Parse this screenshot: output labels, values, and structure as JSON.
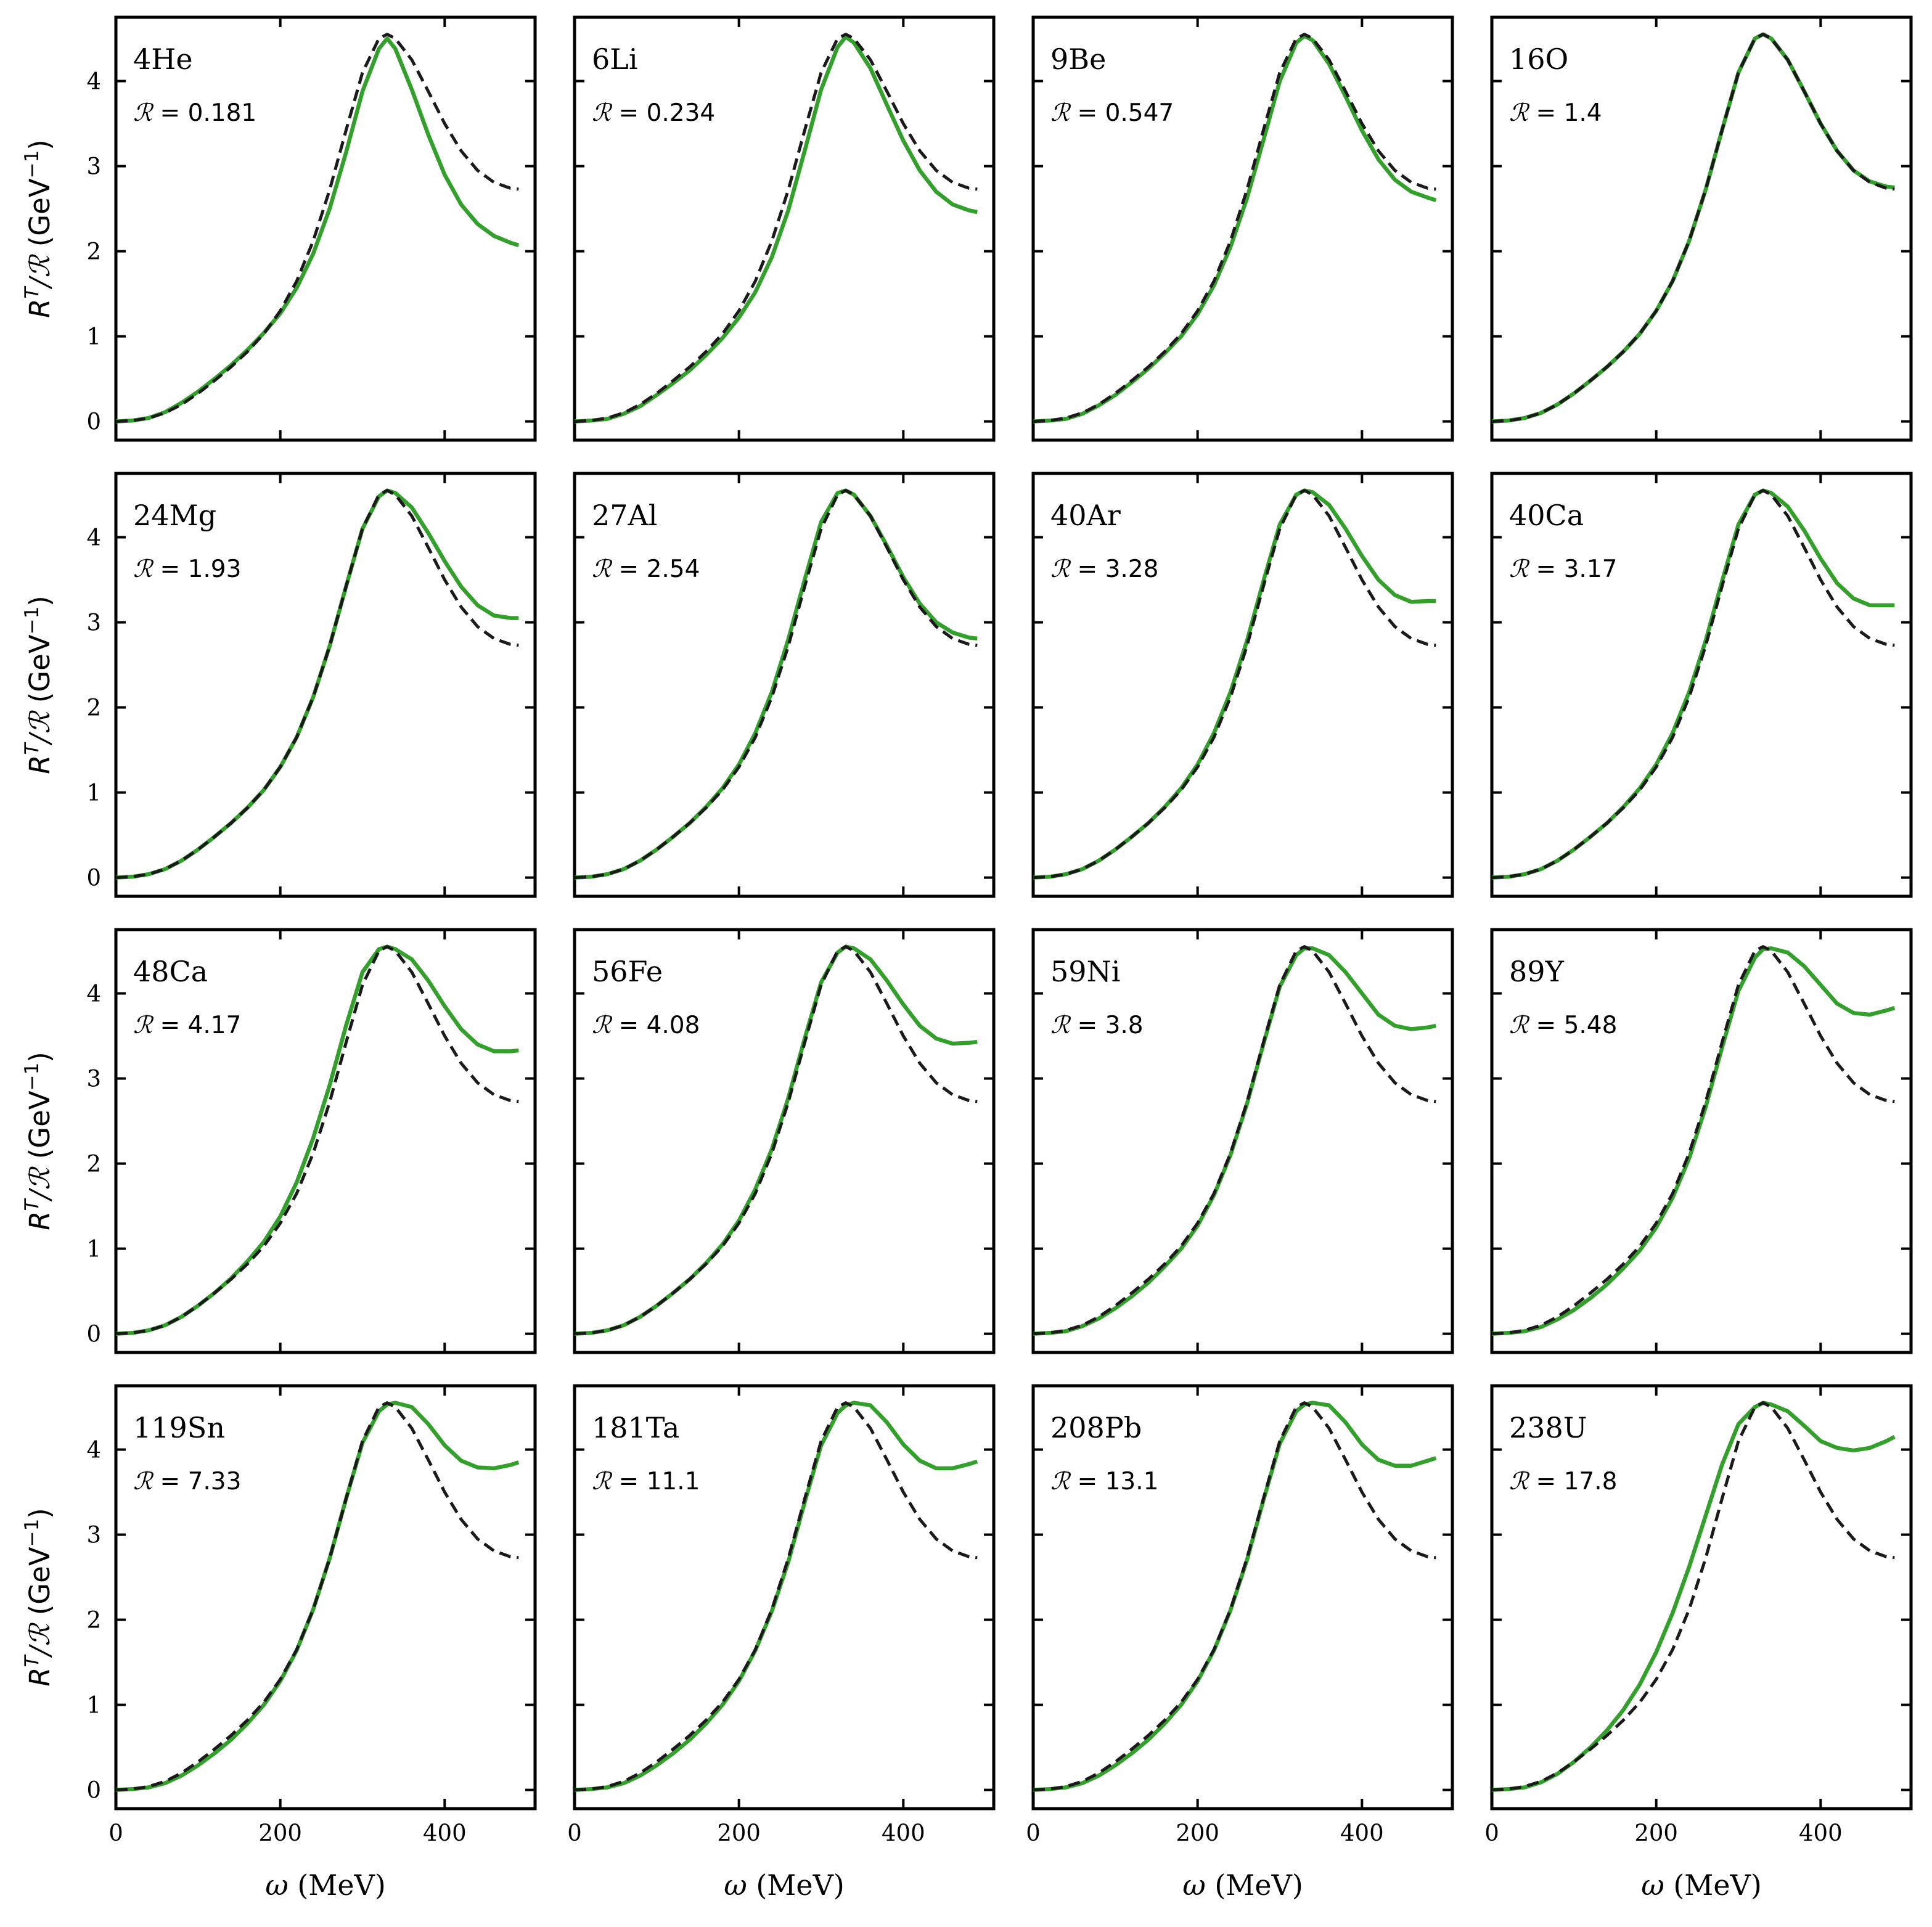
{
  "chart_data": {
    "type": "line",
    "layout": "4x4 small multiples, shared x and y axes",
    "xlabel": "ω (MeV)",
    "ylabel": "R^T/ℛ (GeV⁻¹)",
    "xlim": [
      0,
      510
    ],
    "ylim": [
      -0.22,
      4.75
    ],
    "xticks": [
      0,
      200,
      400
    ],
    "yticks": [
      0,
      1,
      2,
      3,
      4
    ],
    "reference_curve": {
      "name": "reference (dashed)",
      "color": "#1a1a1a",
      "style": "dashed",
      "x": [
        0,
        20,
        40,
        60,
        80,
        100,
        120,
        140,
        160,
        180,
        200,
        220,
        240,
        260,
        280,
        300,
        320,
        330,
        340,
        360,
        380,
        400,
        420,
        440,
        460,
        480,
        490
      ],
      "values": [
        0,
        0.01,
        0.04,
        0.1,
        0.2,
        0.33,
        0.48,
        0.64,
        0.82,
        1.03,
        1.3,
        1.65,
        2.12,
        2.72,
        3.42,
        4.1,
        4.5,
        4.55,
        4.5,
        4.25,
        3.88,
        3.5,
        3.18,
        2.95,
        2.81,
        2.74,
        2.73
      ]
    },
    "panel_series_color": "#33a02c",
    "panels": [
      {
        "nucleus": "4He",
        "r_label": "ℛ = 0.181",
        "values": [
          0,
          0.01,
          0.04,
          0.11,
          0.22,
          0.35,
          0.5,
          0.66,
          0.84,
          1.04,
          1.27,
          1.57,
          1.97,
          2.5,
          3.16,
          3.88,
          4.38,
          4.5,
          4.38,
          3.9,
          3.37,
          2.9,
          2.55,
          2.32,
          2.18,
          2.1,
          2.07
        ]
      },
      {
        "nucleus": "6Li",
        "r_label": "ℛ = 0.234",
        "values": [
          0,
          0.01,
          0.03,
          0.09,
          0.18,
          0.31,
          0.45,
          0.6,
          0.78,
          0.98,
          1.22,
          1.52,
          1.93,
          2.48,
          3.18,
          3.9,
          4.4,
          4.52,
          4.45,
          4.15,
          3.72,
          3.3,
          2.95,
          2.7,
          2.55,
          2.48,
          2.46
        ]
      },
      {
        "nucleus": "9Be",
        "r_label": "ℛ = 0.547",
        "values": [
          0,
          0.01,
          0.03,
          0.09,
          0.19,
          0.31,
          0.46,
          0.62,
          0.8,
          1.0,
          1.26,
          1.6,
          2.05,
          2.62,
          3.3,
          4.0,
          4.45,
          4.53,
          4.48,
          4.2,
          3.82,
          3.42,
          3.08,
          2.84,
          2.7,
          2.63,
          2.6
        ]
      },
      {
        "nucleus": "16O",
        "r_label": "ℛ = 1.4",
        "values": [
          0,
          0.01,
          0.04,
          0.1,
          0.2,
          0.33,
          0.48,
          0.64,
          0.82,
          1.03,
          1.3,
          1.65,
          2.12,
          2.72,
          3.42,
          4.1,
          4.5,
          4.55,
          4.5,
          4.25,
          3.88,
          3.5,
          3.18,
          2.95,
          2.82,
          2.76,
          2.75
        ]
      },
      {
        "nucleus": "24Mg",
        "r_label": "ℛ = 1.93",
        "values": [
          0,
          0.01,
          0.04,
          0.1,
          0.2,
          0.33,
          0.48,
          0.64,
          0.82,
          1.03,
          1.3,
          1.65,
          2.12,
          2.72,
          3.42,
          4.1,
          4.48,
          4.55,
          4.52,
          4.35,
          4.05,
          3.72,
          3.42,
          3.2,
          3.08,
          3.05,
          3.05
        ]
      },
      {
        "nucleus": "27Al",
        "r_label": "ℛ = 2.54",
        "values": [
          0,
          0.01,
          0.04,
          0.1,
          0.2,
          0.33,
          0.48,
          0.64,
          0.83,
          1.05,
          1.33,
          1.7,
          2.18,
          2.8,
          3.5,
          4.18,
          4.52,
          4.55,
          4.5,
          4.25,
          3.9,
          3.53,
          3.22,
          3.0,
          2.88,
          2.82,
          2.81
        ]
      },
      {
        "nucleus": "40Ar",
        "r_label": "ℛ = 3.28",
        "values": [
          0,
          0.01,
          0.04,
          0.1,
          0.2,
          0.33,
          0.48,
          0.64,
          0.83,
          1.05,
          1.33,
          1.7,
          2.18,
          2.78,
          3.48,
          4.15,
          4.5,
          4.55,
          4.53,
          4.38,
          4.1,
          3.78,
          3.5,
          3.32,
          3.24,
          3.25,
          3.25
        ]
      },
      {
        "nucleus": "40Ca",
        "r_label": "ℛ = 3.17",
        "values": [
          0,
          0.01,
          0.04,
          0.1,
          0.2,
          0.33,
          0.48,
          0.64,
          0.83,
          1.05,
          1.33,
          1.7,
          2.18,
          2.78,
          3.48,
          4.15,
          4.5,
          4.55,
          4.52,
          4.36,
          4.08,
          3.75,
          3.46,
          3.28,
          3.2,
          3.2,
          3.2
        ]
      },
      {
        "nucleus": "48Ca",
        "r_label": "ℛ = 4.17",
        "values": [
          0,
          0.01,
          0.04,
          0.1,
          0.2,
          0.33,
          0.48,
          0.65,
          0.85,
          1.08,
          1.38,
          1.78,
          2.3,
          2.92,
          3.62,
          4.25,
          4.52,
          4.55,
          4.52,
          4.4,
          4.15,
          3.85,
          3.58,
          3.4,
          3.32,
          3.32,
          3.33
        ]
      },
      {
        "nucleus": "56Fe",
        "r_label": "ℛ = 4.08",
        "values": [
          0,
          0.01,
          0.04,
          0.1,
          0.2,
          0.33,
          0.48,
          0.64,
          0.83,
          1.05,
          1.33,
          1.7,
          2.17,
          2.77,
          3.47,
          4.13,
          4.48,
          4.55,
          4.53,
          4.4,
          4.15,
          3.87,
          3.62,
          3.47,
          3.41,
          3.42,
          3.43
        ]
      },
      {
        "nucleus": "59Ni",
        "r_label": "ℛ = 3.8",
        "values": [
          0,
          0.01,
          0.03,
          0.09,
          0.18,
          0.3,
          0.44,
          0.6,
          0.79,
          1.0,
          1.27,
          1.63,
          2.1,
          2.7,
          3.4,
          4.08,
          4.45,
          4.53,
          4.53,
          4.45,
          4.25,
          4.0,
          3.75,
          3.62,
          3.58,
          3.6,
          3.62
        ]
      },
      {
        "nucleus": "89Y",
        "r_label": "ℛ = 5.48",
        "values": [
          0,
          0.01,
          0.03,
          0.08,
          0.17,
          0.28,
          0.42,
          0.58,
          0.77,
          0.98,
          1.25,
          1.6,
          2.06,
          2.66,
          3.36,
          4.03,
          4.42,
          4.52,
          4.53,
          4.48,
          4.32,
          4.1,
          3.88,
          3.77,
          3.75,
          3.8,
          3.83
        ]
      },
      {
        "nucleus": "119Sn",
        "r_label": "ℛ = 7.33",
        "values": [
          0,
          0.01,
          0.03,
          0.08,
          0.17,
          0.29,
          0.43,
          0.59,
          0.78,
          1.0,
          1.28,
          1.64,
          2.12,
          2.72,
          3.42,
          4.08,
          4.45,
          4.53,
          4.55,
          4.5,
          4.3,
          4.05,
          3.87,
          3.79,
          3.78,
          3.82,
          3.85
        ]
      },
      {
        "nucleus": "181Ta",
        "r_label": "ℛ = 11.1",
        "values": [
          0,
          0.01,
          0.03,
          0.08,
          0.17,
          0.29,
          0.43,
          0.59,
          0.78,
          1.0,
          1.28,
          1.64,
          2.1,
          2.68,
          3.38,
          4.05,
          4.43,
          4.52,
          4.55,
          4.52,
          4.32,
          4.06,
          3.87,
          3.78,
          3.78,
          3.83,
          3.86
        ]
      },
      {
        "nucleus": "208Pb",
        "r_label": "ℛ = 13.1",
        "values": [
          0,
          0.01,
          0.03,
          0.08,
          0.17,
          0.29,
          0.43,
          0.59,
          0.78,
          1.0,
          1.28,
          1.64,
          2.11,
          2.7,
          3.4,
          4.07,
          4.45,
          4.53,
          4.55,
          4.52,
          4.32,
          4.06,
          3.88,
          3.81,
          3.81,
          3.87,
          3.9
        ]
      },
      {
        "nucleus": "238U",
        "r_label": "ℛ = 17.8",
        "values": [
          0,
          0.01,
          0.03,
          0.09,
          0.19,
          0.33,
          0.5,
          0.7,
          0.94,
          1.24,
          1.62,
          2.08,
          2.62,
          3.22,
          3.82,
          4.3,
          4.5,
          4.55,
          4.53,
          4.45,
          4.28,
          4.1,
          4.02,
          3.99,
          4.02,
          4.1,
          4.15
        ]
      }
    ]
  }
}
